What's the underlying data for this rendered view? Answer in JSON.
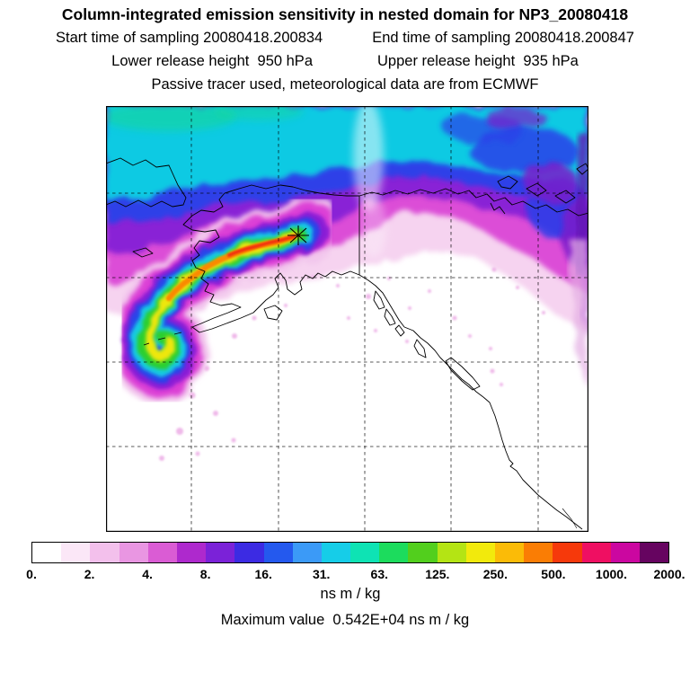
{
  "header": {
    "title": "Column-integrated emission sensitivity in nested domain for NP3_20080418",
    "start_time_label": "Start time of sampling 20080418.200834",
    "end_time_label": "End time of sampling 20080418.200847",
    "lower_release_label": "Lower release height  950 hPa",
    "upper_release_label": "Upper release height  935 hPa",
    "tracer_line": "Passive tracer used, meteorological data are from ECMWF"
  },
  "colorbar": {
    "units": "ns m / kg",
    "tick_labels": [
      "0.",
      "2.",
      "4.",
      "8.",
      "16.",
      "31.",
      "63.",
      "125.",
      "250.",
      "500.",
      "1000.",
      "2000."
    ],
    "tick_values": [
      0,
      2,
      4,
      8,
      16,
      31,
      63,
      125,
      250,
      500,
      1000,
      2000
    ],
    "segment_colors": [
      "#ffffff",
      "#fbe7f7",
      "#f3c0ec",
      "#e996e2",
      "#da5cd4",
      "#ae29cd",
      "#7b22d8",
      "#3c2be3",
      "#2459ee",
      "#3b9af7",
      "#16cde8",
      "#0ee3b4",
      "#1cdc5d",
      "#52cf1d",
      "#b4e414",
      "#f2ea0c",
      "#fbbb07",
      "#fa7d04",
      "#f6390b",
      "#ef0f62",
      "#cb07a0",
      "#660460"
    ]
  },
  "footer": {
    "max_value_line": "Maximum value  0.542E+04 ns m / kg"
  },
  "chart_data": {
    "type": "heatmap",
    "title": "Column-integrated emission sensitivity in nested domain for NP3_20080418",
    "variable": "Column-integrated emission sensitivity",
    "domain_name": "NP3_20080418",
    "start_time": "20080418.200834",
    "end_time": "20080418.200847",
    "lower_release_height": "950 hPa",
    "upper_release_height": "935 hPa",
    "tracer": "Passive tracer used, meteorological data are from ECMWF",
    "units": "ns m / kg",
    "colorbar_levels": [
      0,
      2,
      4,
      8,
      16,
      31,
      63,
      125,
      250,
      500,
      1000,
      2000
    ],
    "maximum_value": "0.542E+04",
    "legend_position": "bottom",
    "map_region": "Alaska, Bering Sea and western North America with release point marked by asterisk; plume spirals southwest of source, high sensitivity band across Arctic"
  }
}
